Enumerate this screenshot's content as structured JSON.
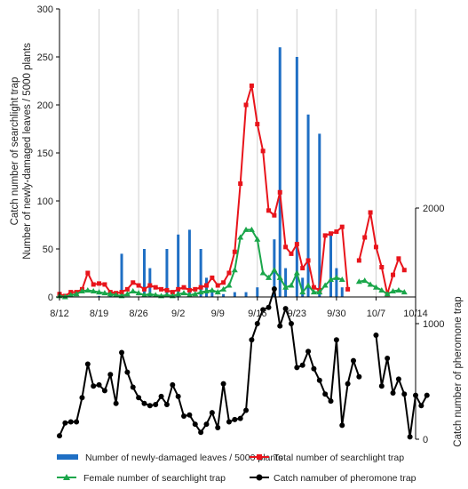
{
  "chart_data": {
    "type": "line",
    "x_tick_labels": [
      "8/12",
      "8/19",
      "8/26",
      "9/2",
      "9/9",
      "9/16",
      "9/23",
      "9/30",
      "10/7",
      "10/14"
    ],
    "y_left_label_line1": "Catch number of searchlight trap",
    "y_left_label_line2": "Number of newly-damaged leaves / 5000 plants",
    "y_left_ticks": [
      "0",
      "50",
      "100",
      "150",
      "200",
      "250",
      "300"
    ],
    "y_left_lim": [
      0,
      300
    ],
    "y_right_label": "Catch number of pheromone trap",
    "y_right_ticks": [
      "0",
      "1000",
      "2000"
    ],
    "y_right_lim": [
      0,
      2000
    ],
    "grid": "vertical",
    "legend": "bottom",
    "series": [
      {
        "name": "Number of newly-damaged leaves / 5000 plants",
        "kind": "bar",
        "axis": "left",
        "color": "#1f6fc4",
        "days": [
          7,
          9,
          11,
          15,
          16,
          17,
          19,
          21,
          23,
          25,
          26,
          27,
          29,
          31,
          33,
          35,
          38,
          39,
          40,
          42,
          43,
          44,
          46,
          48,
          49,
          50
        ],
        "values": [
          1,
          2,
          45,
          50,
          30,
          3,
          50,
          65,
          70,
          50,
          20,
          5,
          3,
          5,
          5,
          10,
          60,
          260,
          30,
          250,
          20,
          190,
          170,
          65,
          30,
          10
        ]
      },
      {
        "name": "Total number of searchlight trap",
        "kind": "line",
        "axis": "left",
        "color": "#e8141b",
        "marker": "square",
        "segments": [
          [
            [
              0,
              3
            ],
            [
              1,
              1
            ],
            [
              2,
              5
            ],
            [
              3,
              5
            ],
            [
              4,
              8
            ],
            [
              5,
              25
            ],
            [
              6,
              13
            ],
            [
              7,
              14
            ],
            [
              8,
              13
            ],
            [
              9,
              5
            ],
            [
              10,
              4
            ],
            [
              11,
              5
            ],
            [
              12,
              8
            ],
            [
              13,
              15
            ],
            [
              14,
              12
            ],
            [
              15,
              8
            ],
            [
              16,
              12
            ],
            [
              17,
              10
            ],
            [
              18,
              8
            ],
            [
              19,
              7
            ],
            [
              20,
              5
            ],
            [
              21,
              8
            ],
            [
              22,
              10
            ],
            [
              23,
              7
            ],
            [
              24,
              8
            ],
            [
              25,
              10
            ],
            [
              26,
              12
            ],
            [
              27,
              20
            ],
            [
              28,
              12
            ],
            [
              29,
              15
            ],
            [
              30,
              25
            ],
            [
              31,
              47
            ],
            [
              32,
              118
            ],
            [
              33,
              200
            ],
            [
              34,
              220
            ],
            [
              35,
              180
            ],
            [
              36,
              152
            ],
            [
              37,
              90
            ],
            [
              38,
              85
            ],
            [
              39,
              109
            ],
            [
              40,
              52
            ],
            [
              41,
              45
            ],
            [
              42,
              55
            ],
            [
              43,
              30
            ],
            [
              44,
              38
            ],
            [
              45,
              10
            ],
            [
              46,
              7
            ],
            [
              47,
              64
            ],
            [
              48,
              66
            ],
            [
              49,
              68
            ],
            [
              50,
              73
            ],
            [
              51,
              8
            ]
          ],
          [
            [
              53,
              38
            ],
            [
              54,
              62
            ],
            [
              55,
              88
            ],
            [
              56,
              52
            ],
            [
              57,
              31
            ],
            [
              58,
              3
            ],
            [
              59,
              23
            ],
            [
              60,
              40
            ],
            [
              61,
              28
            ]
          ]
        ]
      },
      {
        "name": "Female number of searchlight trap",
        "kind": "line",
        "axis": "left",
        "color": "#1aa64a",
        "marker": "triangle",
        "segments": [
          [
            [
              0,
              1
            ],
            [
              1,
              0
            ],
            [
              2,
              2
            ],
            [
              3,
              3
            ],
            [
              4,
              6
            ],
            [
              5,
              7
            ],
            [
              6,
              6
            ],
            [
              7,
              5
            ],
            [
              8,
              4
            ],
            [
              9,
              3
            ],
            [
              10,
              2
            ],
            [
              11,
              1
            ],
            [
              12,
              3
            ],
            [
              13,
              6
            ],
            [
              14,
              4
            ],
            [
              15,
              2
            ],
            [
              16,
              3
            ],
            [
              17,
              2
            ],
            [
              18,
              1
            ],
            [
              19,
              2
            ],
            [
              20,
              1
            ],
            [
              21,
              3
            ],
            [
              22,
              4
            ],
            [
              23,
              2
            ],
            [
              24,
              3
            ],
            [
              25,
              5
            ],
            [
              26,
              6
            ],
            [
              27,
              7
            ],
            [
              28,
              5
            ],
            [
              29,
              8
            ],
            [
              30,
              12
            ],
            [
              31,
              28
            ],
            [
              32,
              62
            ],
            [
              33,
              70
            ],
            [
              34,
              70
            ],
            [
              35,
              60
            ],
            [
              36,
              25
            ],
            [
              37,
              20
            ],
            [
              38,
              28
            ],
            [
              39,
              20
            ],
            [
              40,
              10
            ],
            [
              41,
              12
            ],
            [
              42,
              25
            ],
            [
              43,
              5
            ],
            [
              44,
              12
            ],
            [
              45,
              5
            ],
            [
              46,
              5
            ],
            [
              47,
              12
            ],
            [
              48,
              18
            ],
            [
              49,
              20
            ],
            [
              50,
              18
            ]
          ],
          [
            [
              53,
              16
            ],
            [
              54,
              17
            ],
            [
              55,
              13
            ],
            [
              56,
              10
            ],
            [
              57,
              7
            ],
            [
              58,
              3
            ],
            [
              59,
              6
            ],
            [
              60,
              7
            ],
            [
              61,
              5
            ]
          ]
        ]
      },
      {
        "name": "Catch namuber of pheromone trap",
        "kind": "line",
        "axis": "right",
        "color": "#000000",
        "marker": "circle",
        "segments": [
          [
            [
              0,
              30
            ],
            [
              1,
              140
            ],
            [
              2,
              150
            ],
            [
              3,
              150
            ],
            [
              4,
              360
            ],
            [
              5,
              650
            ],
            [
              6,
              460
            ],
            [
              7,
              470
            ],
            [
              8,
              420
            ],
            [
              9,
              560
            ],
            [
              10,
              310
            ],
            [
              11,
              750
            ],
            [
              12,
              580
            ],
            [
              13,
              450
            ],
            [
              14,
              360
            ],
            [
              15,
              310
            ],
            [
              16,
              290
            ],
            [
              17,
              300
            ],
            [
              18,
              370
            ],
            [
              19,
              300
            ],
            [
              20,
              470
            ],
            [
              21,
              370
            ],
            [
              22,
              200
            ],
            [
              23,
              210
            ],
            [
              24,
              130
            ],
            [
              25,
              60
            ],
            [
              26,
              130
            ],
            [
              27,
              230
            ],
            [
              28,
              100
            ],
            [
              29,
              480
            ],
            [
              30,
              150
            ],
            [
              31,
              170
            ],
            [
              32,
              180
            ],
            [
              33,
              250
            ],
            [
              34,
              860
            ],
            [
              35,
              1000
            ],
            [
              36,
              1120
            ],
            [
              37,
              1140
            ],
            [
              38,
              1300
            ],
            [
              39,
              980
            ],
            [
              40,
              1130
            ],
            [
              41,
              1000
            ],
            [
              42,
              620
            ],
            [
              43,
              640
            ],
            [
              44,
              760
            ],
            [
              45,
              610
            ],
            [
              46,
              510
            ],
            [
              47,
              390
            ],
            [
              48,
              330
            ],
            [
              49,
              860
            ],
            [
              50,
              120
            ],
            [
              51,
              480
            ],
            [
              52,
              680
            ],
            [
              53,
              540
            ]
          ],
          [
            [
              56,
              900
            ],
            [
              57,
              460
            ],
            [
              58,
              700
            ],
            [
              59,
              400
            ],
            [
              60,
              520
            ],
            [
              61,
              390
            ],
            [
              62,
              20
            ],
            [
              63,
              380
            ],
            [
              64,
              290
            ],
            [
              65,
              380
            ]
          ]
        ]
      }
    ]
  }
}
